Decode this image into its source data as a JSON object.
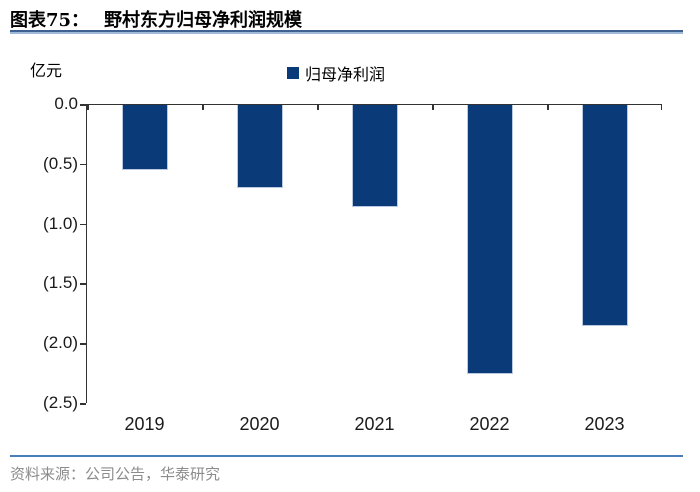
{
  "figure": {
    "label": "图表75：",
    "title": "野村东方归母净利润规模",
    "unit": "亿元",
    "source": "资料来源：公司公告，华泰研究"
  },
  "legend": {
    "items": [
      {
        "label": "归母净利润",
        "color": "#0a3a78"
      }
    ]
  },
  "chart_data": {
    "type": "bar",
    "categories": [
      "2019",
      "2020",
      "2021",
      "2022",
      "2023"
    ],
    "series": [
      {
        "name": "归母净利润",
        "values": [
          -0.54,
          -0.69,
          -0.85,
          -2.25,
          -1.85
        ]
      }
    ],
    "title": "野村东方归母净利润规模",
    "xlabel": "",
    "ylabel": "亿元",
    "ylim": [
      -2.5,
      0
    ],
    "ytick_step": 0.5,
    "ytick_labels": [
      "0.0",
      "(0.5)",
      "(1.0)",
      "(1.5)",
      "(2.0)",
      "(2.5)"
    ],
    "negative_format": "parentheses",
    "bar_color": "#0a3a78",
    "grid": false,
    "legend_position": "top-center"
  },
  "colors": {
    "bar": "#0a3a78",
    "axis": "#333333",
    "header_rule_dark": "#3f618f",
    "header_rule_light": "#9fb9d8",
    "footer_rule": "#4a7ebb",
    "source_text": "#8c8c8c"
  }
}
